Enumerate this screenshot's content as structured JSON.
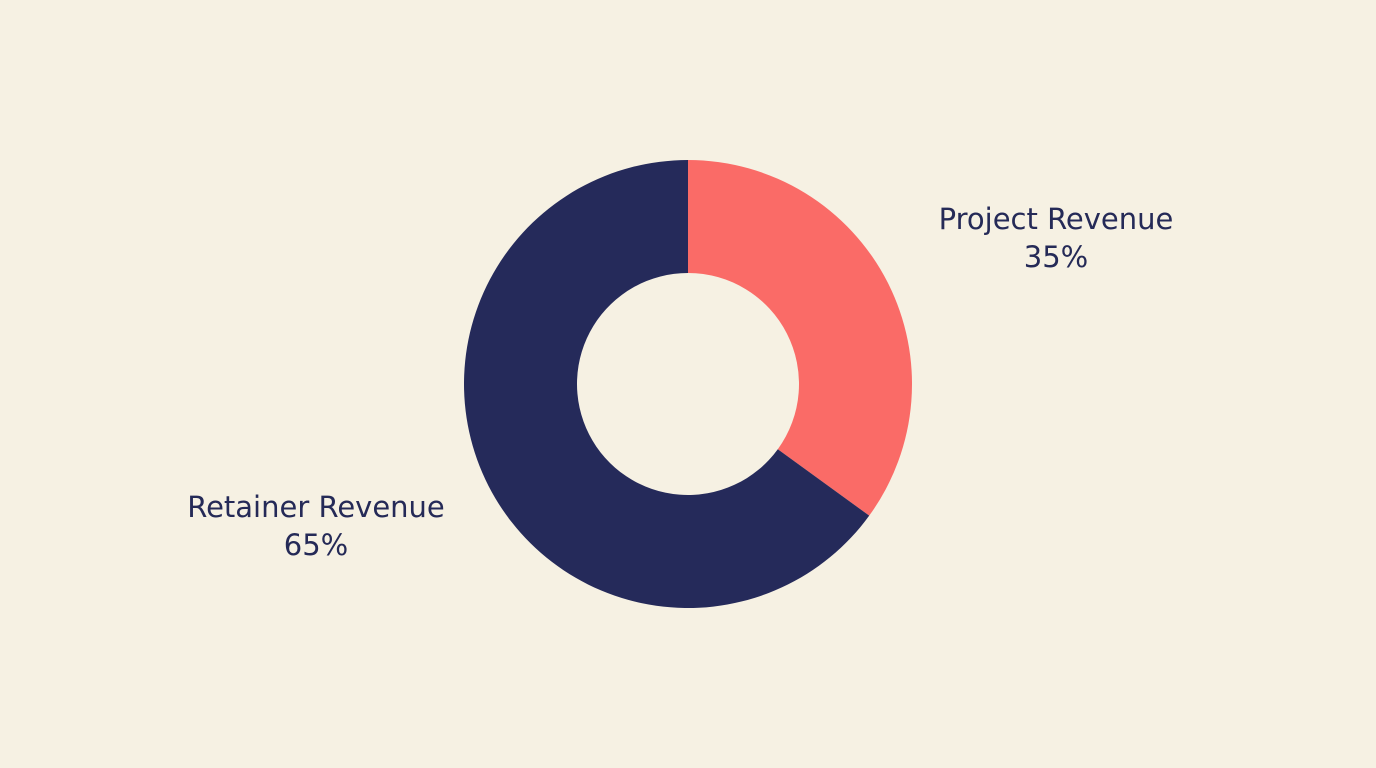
{
  "chart_data": {
    "type": "pie",
    "donut": true,
    "start_angle_deg": 0,
    "direction": "clockwise",
    "slices": [
      {
        "label": "Project Revenue",
        "value": 35,
        "value_label": "35%",
        "color": "#fa6b67"
      },
      {
        "label": "Retainer Revenue",
        "value": 65,
        "value_label": "65%",
        "color": "#252a5a"
      }
    ],
    "background": "#f6f1e3"
  }
}
